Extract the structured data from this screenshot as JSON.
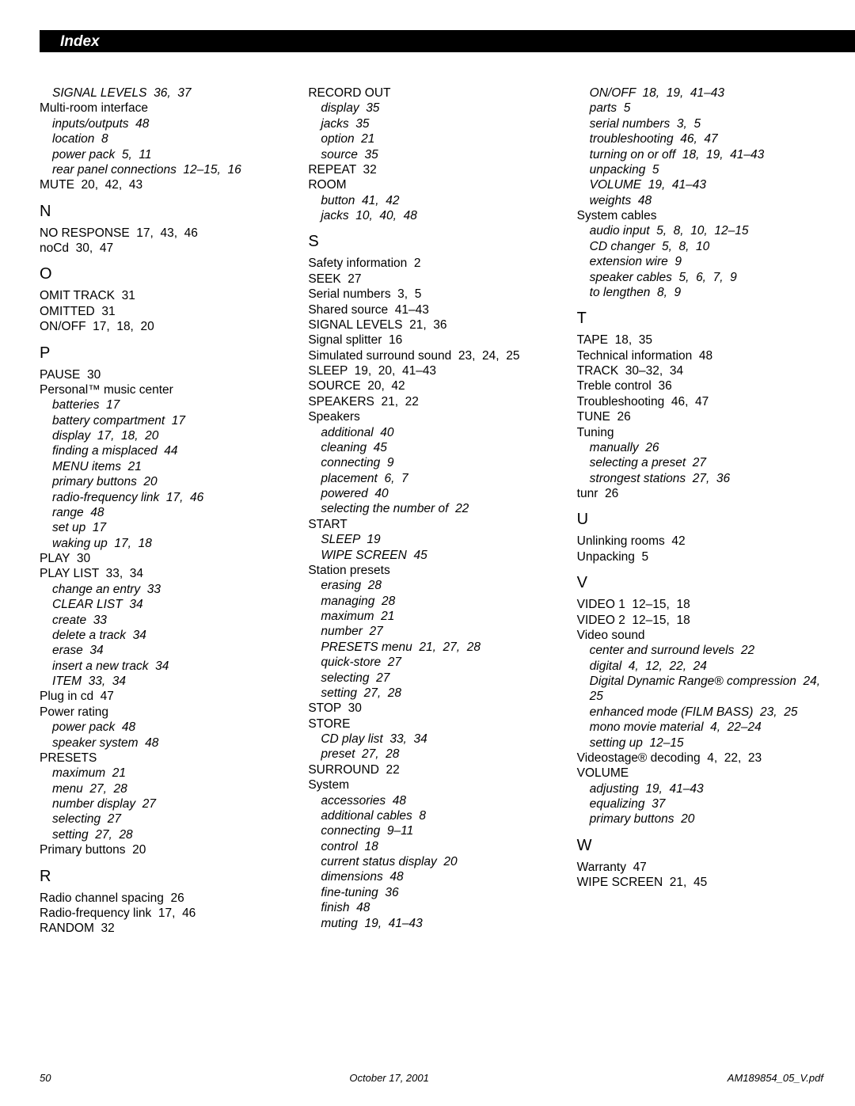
{
  "header": {
    "title": "Index"
  },
  "footer": {
    "page": "50",
    "date": "October 17, 2001",
    "file": "AM189854_05_V.pdf"
  },
  "columns": [
    [
      {
        "t": "sub",
        "v": "SIGNAL LEVELS  36,  37"
      },
      {
        "t": "reg",
        "v": "Multi-room interface"
      },
      {
        "t": "sub",
        "v": "inputs/outputs  48"
      },
      {
        "t": "sub",
        "v": "location  8"
      },
      {
        "t": "sub",
        "v": "power pack  5,  11"
      },
      {
        "t": "sub",
        "v": "rear panel connections  12–15,  16"
      },
      {
        "t": "reg",
        "v": "MUTE  20,  42,  43"
      },
      {
        "t": "letter",
        "v": "N"
      },
      {
        "t": "reg",
        "v": "NO RESPONSE  17,  43,  46"
      },
      {
        "t": "reg",
        "v": "noCd  30,  47"
      },
      {
        "t": "letter",
        "v": "O"
      },
      {
        "t": "reg",
        "v": "OMIT TRACK  31"
      },
      {
        "t": "reg",
        "v": "OMITTED  31"
      },
      {
        "t": "reg",
        "v": "ON/OFF  17,  18,  20"
      },
      {
        "t": "letter",
        "v": "P"
      },
      {
        "t": "reg",
        "v": "PAUSE  30"
      },
      {
        "t": "reg",
        "v": "Personal™ music center"
      },
      {
        "t": "sub",
        "v": "batteries  17"
      },
      {
        "t": "sub",
        "v": "battery compartment  17"
      },
      {
        "t": "sub",
        "v": "display  17,  18,  20"
      },
      {
        "t": "sub",
        "v": "finding a misplaced  44"
      },
      {
        "t": "sub",
        "v": "MENU items  21"
      },
      {
        "t": "sub",
        "v": "primary buttons  20"
      },
      {
        "t": "sub",
        "v": "radio-frequency link  17,  46"
      },
      {
        "t": "sub",
        "v": "range  48"
      },
      {
        "t": "sub",
        "v": "set up  17"
      },
      {
        "t": "sub",
        "v": "waking up  17,  18"
      },
      {
        "t": "reg",
        "v": "PLAY  30"
      },
      {
        "t": "reg",
        "v": "PLAY LIST  33,  34"
      },
      {
        "t": "sub",
        "v": "change an entry  33"
      },
      {
        "t": "sub",
        "v": "CLEAR LIST  34"
      },
      {
        "t": "sub",
        "v": "create  33"
      },
      {
        "t": "sub",
        "v": "delete a track  34"
      },
      {
        "t": "sub",
        "v": "erase  34"
      },
      {
        "t": "sub",
        "v": "insert a new track  34"
      },
      {
        "t": "sub",
        "v": "ITEM  33,  34"
      },
      {
        "t": "reg",
        "v": "Plug in cd  47"
      },
      {
        "t": "reg",
        "v": "Power rating"
      },
      {
        "t": "sub",
        "v": "power pack  48"
      },
      {
        "t": "sub",
        "v": "speaker system  48"
      },
      {
        "t": "reg",
        "v": "PRESETS"
      },
      {
        "t": "sub",
        "v": "maximum  21"
      },
      {
        "t": "sub",
        "v": "menu  27,  28"
      },
      {
        "t": "sub",
        "v": "number display  27"
      },
      {
        "t": "sub",
        "v": "selecting  27"
      },
      {
        "t": "sub",
        "v": "setting  27,  28"
      },
      {
        "t": "reg",
        "v": "Primary buttons  20"
      },
      {
        "t": "letter",
        "v": "R"
      },
      {
        "t": "reg",
        "v": "Radio channel spacing  26"
      },
      {
        "t": "reg",
        "v": "Radio-frequency link  17,  46"
      },
      {
        "t": "reg",
        "v": "RANDOM  32"
      }
    ],
    [
      {
        "t": "reg",
        "v": "RECORD OUT"
      },
      {
        "t": "sub",
        "v": "display  35"
      },
      {
        "t": "sub",
        "v": "jacks  35"
      },
      {
        "t": "sub",
        "v": "option  21"
      },
      {
        "t": "sub",
        "v": "source  35"
      },
      {
        "t": "reg",
        "v": "REPEAT  32"
      },
      {
        "t": "reg",
        "v": "ROOM"
      },
      {
        "t": "sub",
        "v": "button  41,  42"
      },
      {
        "t": "sub",
        "v": "jacks  10,  40,  48"
      },
      {
        "t": "letter",
        "v": "S"
      },
      {
        "t": "reg",
        "v": "Safety information  2"
      },
      {
        "t": "reg",
        "v": "SEEK  27"
      },
      {
        "t": "reg",
        "v": "Serial numbers  3,  5"
      },
      {
        "t": "reg",
        "v": "Shared source  41–43"
      },
      {
        "t": "reg",
        "v": "SIGNAL LEVELS  21,  36"
      },
      {
        "t": "reg",
        "v": "Signal splitter  16"
      },
      {
        "t": "reg",
        "v": "Simulated surround sound  23,  24,  25"
      },
      {
        "t": "reg",
        "v": "SLEEP  19,  20,  41–43"
      },
      {
        "t": "reg",
        "v": "SOURCE  20,  42"
      },
      {
        "t": "reg",
        "v": "SPEAKERS  21,  22"
      },
      {
        "t": "reg",
        "v": "Speakers"
      },
      {
        "t": "sub",
        "v": "additional  40"
      },
      {
        "t": "sub",
        "v": "cleaning  45"
      },
      {
        "t": "sub",
        "v": "connecting  9"
      },
      {
        "t": "sub",
        "v": "placement  6,  7"
      },
      {
        "t": "sub",
        "v": "powered  40"
      },
      {
        "t": "sub",
        "v": "selecting the number of  22"
      },
      {
        "t": "reg",
        "v": "START"
      },
      {
        "t": "sub",
        "v": "SLEEP  19"
      },
      {
        "t": "sub",
        "v": "WIPE SCREEN  45"
      },
      {
        "t": "reg",
        "v": "Station presets"
      },
      {
        "t": "sub",
        "v": "erasing  28"
      },
      {
        "t": "sub",
        "v": "managing  28"
      },
      {
        "t": "sub",
        "v": "maximum  21"
      },
      {
        "t": "sub",
        "v": "number  27"
      },
      {
        "t": "sub",
        "v": "PRESETS menu  21,  27,  28"
      },
      {
        "t": "sub",
        "v": "quick-store  27"
      },
      {
        "t": "sub",
        "v": "selecting  27"
      },
      {
        "t": "sub",
        "v": "setting  27,  28"
      },
      {
        "t": "reg",
        "v": "STOP  30"
      },
      {
        "t": "reg",
        "v": "STORE"
      },
      {
        "t": "sub",
        "v": "CD play list  33,  34"
      },
      {
        "t": "sub",
        "v": "preset  27,  28"
      },
      {
        "t": "reg",
        "v": "SURROUND  22"
      },
      {
        "t": "reg",
        "v": "System"
      },
      {
        "t": "sub",
        "v": "accessories  48"
      },
      {
        "t": "sub",
        "v": "additional cables  8"
      },
      {
        "t": "sub",
        "v": "connecting  9–11"
      },
      {
        "t": "sub",
        "v": "control  18"
      },
      {
        "t": "sub",
        "v": "current status display  20"
      },
      {
        "t": "sub",
        "v": "dimensions  48"
      },
      {
        "t": "sub",
        "v": "fine-tuning  36"
      },
      {
        "t": "sub",
        "v": "finish  48"
      },
      {
        "t": "sub",
        "v": "muting  19,  41–43"
      }
    ],
    [
      {
        "t": "sub",
        "v": "ON/OFF  18,  19,  41–43"
      },
      {
        "t": "sub",
        "v": "parts  5"
      },
      {
        "t": "sub",
        "v": "serial numbers  3,  5"
      },
      {
        "t": "sub",
        "v": "troubleshooting  46,  47"
      },
      {
        "t": "sub",
        "v": "turning on or off  18,  19,  41–43"
      },
      {
        "t": "sub",
        "v": "unpacking  5"
      },
      {
        "t": "sub",
        "v": "VOLUME  19,  41–43"
      },
      {
        "t": "sub",
        "v": "weights  48"
      },
      {
        "t": "reg",
        "v": "System cables"
      },
      {
        "t": "sub",
        "v": "audio input  5,  8,  10,  12–15"
      },
      {
        "t": "sub",
        "v": "CD changer  5,  8,  10"
      },
      {
        "t": "sub",
        "v": "extension wire  9"
      },
      {
        "t": "sub",
        "v": "speaker cables  5,  6,  7,  9"
      },
      {
        "t": "sub",
        "v": "to lengthen  8,  9"
      },
      {
        "t": "letter",
        "v": "T"
      },
      {
        "t": "reg",
        "v": "TAPE  18,  35"
      },
      {
        "t": "reg",
        "v": "Technical information  48"
      },
      {
        "t": "reg",
        "v": "TRACK  30–32,  34"
      },
      {
        "t": "reg",
        "v": "Treble control  36"
      },
      {
        "t": "reg",
        "v": "Troubleshooting  46,  47"
      },
      {
        "t": "reg",
        "v": "TUNE  26"
      },
      {
        "t": "reg",
        "v": "Tuning"
      },
      {
        "t": "sub",
        "v": "manually  26"
      },
      {
        "t": "sub",
        "v": "selecting a preset  27"
      },
      {
        "t": "sub",
        "v": "strongest stations  27,  36"
      },
      {
        "t": "reg",
        "v": "tunr  26"
      },
      {
        "t": "letter",
        "v": "U"
      },
      {
        "t": "reg",
        "v": "Unlinking rooms  42"
      },
      {
        "t": "reg",
        "v": "Unpacking  5"
      },
      {
        "t": "letter",
        "v": "V"
      },
      {
        "t": "reg",
        "v": "VIDEO 1  12–15,  18"
      },
      {
        "t": "reg",
        "v": "VIDEO 2  12–15,  18"
      },
      {
        "t": "reg",
        "v": "Video sound"
      },
      {
        "t": "sub",
        "v": "center and surround levels  22"
      },
      {
        "t": "sub",
        "v": "digital  4,  12,  22,  24"
      },
      {
        "t": "sub",
        "v": "Digital Dynamic Range® compression  24,  25"
      },
      {
        "t": "sub",
        "v": "enhanced mode (FILM BASS)  23,  25"
      },
      {
        "t": "sub",
        "v": "mono movie material  4,  22–24"
      },
      {
        "t": "sub",
        "v": "setting up  12–15"
      },
      {
        "t": "reg",
        "v": "Videostage® decoding  4,  22,  23"
      },
      {
        "t": "reg",
        "v": "VOLUME"
      },
      {
        "t": "sub",
        "v": "adjusting  19,  41–43"
      },
      {
        "t": "sub",
        "v": "equalizing  37"
      },
      {
        "t": "sub",
        "v": "primary buttons  20"
      },
      {
        "t": "letter",
        "v": "W"
      },
      {
        "t": "reg",
        "v": "Warranty  47"
      },
      {
        "t": "reg",
        "v": "WIPE SCREEN  21,  45"
      }
    ]
  ]
}
